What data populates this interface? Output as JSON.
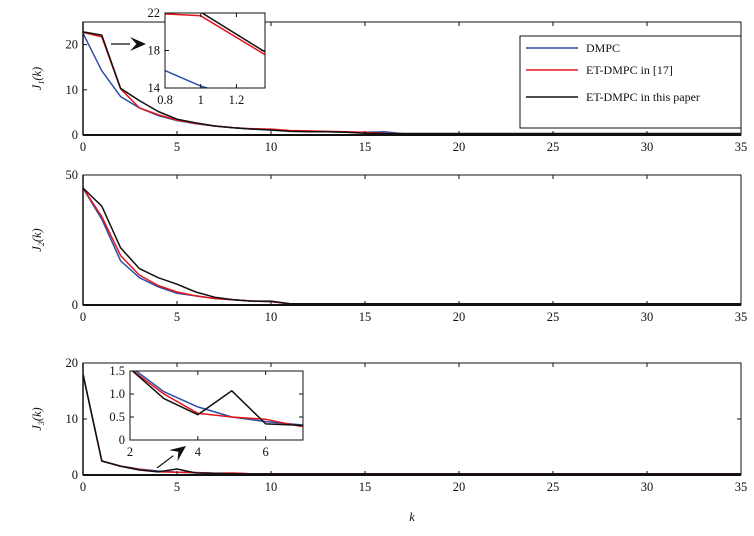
{
  "chart_data": [
    {
      "type": "line",
      "title": "",
      "xlabel": "",
      "ylabel": "J_1(k)",
      "ylabel_main": "J",
      "ylabel_sub": "1",
      "ylabel_arg": "(k)",
      "xlim": [
        0,
        35
      ],
      "ylim": [
        0,
        25
      ],
      "xticks": [
        0,
        5,
        10,
        15,
        20,
        25,
        30,
        35
      ],
      "yticks": [
        0,
        10,
        20
      ],
      "grid": false,
      "legend": {
        "placement": "top-right",
        "entries": [
          "DMPC",
          "ET-DMPC in [17]",
          "ET-DMPC in this paper"
        ]
      },
      "x": [
        0,
        1,
        2,
        3,
        4,
        5,
        6,
        7,
        8,
        9,
        10,
        11,
        12,
        13,
        14,
        15,
        16,
        17,
        18,
        19,
        20,
        21,
        22,
        23,
        24,
        25,
        26,
        27,
        28,
        29,
        30,
        31,
        32,
        33,
        34,
        35
      ],
      "series": [
        {
          "name": "DMPC",
          "color": "#2b4fa8",
          "values": [
            22.5,
            14.2,
            8.5,
            6,
            4.3,
            3.2,
            2.5,
            2,
            1.6,
            1.3,
            1.1,
            0.9,
            0.8,
            0.7,
            0.6,
            0.6,
            0.7,
            0.3,
            0.3,
            0.3,
            0.3,
            0.3,
            0.3,
            0.3,
            0.3,
            0.3,
            0.3,
            0.3,
            0.3,
            0.3,
            0.3,
            0.3,
            0.3,
            0.3,
            0.3,
            0.3
          ]
        },
        {
          "name": "ET-DMPC in [17]",
          "color": "#e8141c",
          "values": [
            22.7,
            21.7,
            10.2,
            6,
            4.5,
            3.3,
            2.6,
            2,
            1.6,
            1.4,
            1.3,
            1.0,
            0.9,
            0.8,
            0.7,
            0.6,
            0.4,
            0.3,
            0.3,
            0.3,
            0.3,
            0.3,
            0.3,
            0.3,
            0.3,
            0.3,
            0.3,
            0.3,
            0.3,
            0.3,
            0.3,
            0.3,
            0.3,
            0.3,
            0.3,
            0.3
          ]
        },
        {
          "name": "ET-DMPC in this paper",
          "color": "#111111",
          "values": [
            22.8,
            22.1,
            10.3,
            7.6,
            5.2,
            3.5,
            2.7,
            2.0,
            1.6,
            1.3,
            1.1,
            0.8,
            0.7,
            0.7,
            0.6,
            0.4,
            0.3,
            0.3,
            0.3,
            0.3,
            0.3,
            0.3,
            0.3,
            0.3,
            0.3,
            0.3,
            0.3,
            0.3,
            0.3,
            0.3,
            0.3,
            0.3,
            0.3,
            0.3,
            0.3,
            0.3
          ]
        }
      ],
      "inset": {
        "xlim": [
          0.8,
          1.36
        ],
        "ylim": [
          14,
          22
        ],
        "xticks": [
          0.8,
          1,
          1.2
        ],
        "xtick_labels": [
          "0.8",
          "1",
          "1.2"
        ],
        "yticks": [
          14,
          18,
          22
        ],
        "ytick_labels": [
          "14",
          "18",
          "22"
        ]
      }
    },
    {
      "type": "line",
      "ylabel": "J_2(k)",
      "ylabel_main": "J",
      "ylabel_sub": "2",
      "ylabel_arg": "(k)",
      "xlim": [
        0,
        35
      ],
      "ylim": [
        0,
        50
      ],
      "xticks": [
        0,
        5,
        10,
        15,
        20,
        25,
        30,
        35
      ],
      "yticks": [
        0,
        50
      ],
      "grid": false,
      "x": [
        0,
        1,
        2,
        3,
        4,
        5,
        6,
        7,
        8,
        9,
        10,
        11,
        12,
        13,
        14,
        15,
        16,
        17,
        18,
        19,
        20,
        21,
        22,
        23,
        24,
        25,
        26,
        27,
        28,
        29,
        30,
        31,
        32,
        33,
        34,
        35
      ],
      "series": [
        {
          "name": "DMPC",
          "color": "#2b4fa8",
          "values": [
            45,
            33,
            17,
            10.5,
            7,
            4.5,
            3.5,
            2.5,
            2,
            1.5,
            1.3,
            0.5,
            0.5,
            0.5,
            0.5,
            0.5,
            0.5,
            0.5,
            0.5,
            0.5,
            0.5,
            0.5,
            0.5,
            0.5,
            0.5,
            0.5,
            0.5,
            0.5,
            0.5,
            0.5,
            0.5,
            0.5,
            0.5,
            0.5,
            0.5,
            0.5
          ]
        },
        {
          "name": "ET-DMPC in [17]",
          "color": "#e8141c",
          "values": [
            45,
            34,
            19,
            11.5,
            7.5,
            5,
            3.5,
            2.5,
            2,
            1.5,
            1.3,
            0.5,
            0.5,
            0.5,
            0.5,
            0.5,
            0.5,
            0.5,
            0.5,
            0.5,
            0.5,
            0.5,
            0.5,
            0.5,
            0.5,
            0.5,
            0.5,
            0.5,
            0.5,
            0.5,
            0.5,
            0.5,
            0.5,
            0.5,
            0.5,
            0.5
          ]
        },
        {
          "name": "ET-DMPC in this paper",
          "color": "#111111",
          "values": [
            45,
            38,
            22,
            14,
            10.5,
            8,
            5,
            3,
            2,
            1.5,
            1.5,
            0.5,
            0.5,
            0.5,
            0.5,
            0.5,
            0.5,
            0.5,
            0.5,
            0.5,
            0.5,
            0.5,
            0.5,
            0.5,
            0.5,
            0.5,
            0.5,
            0.5,
            0.5,
            0.5,
            0.5,
            0.5,
            0.5,
            0.5,
            0.5,
            0.5
          ]
        }
      ]
    },
    {
      "type": "line",
      "xlabel": "k",
      "ylabel": "J_3(k)",
      "ylabel_main": "J",
      "ylabel_sub": "3",
      "ylabel_arg": "(k)",
      "xlim": [
        0,
        35
      ],
      "ylim": [
        0,
        20
      ],
      "xticks": [
        0,
        5,
        10,
        15,
        20,
        25,
        30,
        35
      ],
      "yticks": [
        0,
        10,
        20
      ],
      "grid": false,
      "x": [
        0,
        1,
        2,
        3,
        4,
        5,
        6,
        7,
        8,
        9,
        10,
        11,
        12,
        13,
        14,
        15,
        16,
        17,
        18,
        19,
        20,
        21,
        22,
        23,
        24,
        25,
        26,
        27,
        28,
        29,
        30,
        31,
        32,
        33,
        34,
        35
      ],
      "series": [
        {
          "name": "DMPC",
          "color": "#2b4fa8",
          "values": [
            18,
            2.5,
            1.6,
            1.05,
            0.72,
            0.5,
            0.4,
            0.33,
            0.3,
            0.2,
            0.2,
            0.2,
            0.2,
            0.2,
            0.2,
            0.2,
            0.2,
            0.2,
            0.2,
            0.2,
            0.2,
            0.2,
            0.2,
            0.2,
            0.2,
            0.2,
            0.2,
            0.2,
            0.2,
            0.2,
            0.2,
            0.2,
            0.2,
            0.2,
            0.2,
            0.2
          ]
        },
        {
          "name": "ET-DMPC in [17]",
          "color": "#e8141c",
          "values": [
            18,
            2.5,
            1.55,
            1.0,
            0.58,
            0.5,
            0.45,
            0.3,
            0.35,
            0.2,
            0.2,
            0.2,
            0.2,
            0.2,
            0.2,
            0.2,
            0.2,
            0.2,
            0.2,
            0.2,
            0.2,
            0.2,
            0.2,
            0.2,
            0.2,
            0.2,
            0.2,
            0.2,
            0.2,
            0.2,
            0.2,
            0.2,
            0.2,
            0.2,
            0.2,
            0.2
          ]
        },
        {
          "name": "ET-DMPC in this paper",
          "color": "#111111",
          "values": [
            18,
            2.5,
            1.55,
            0.9,
            0.55,
            1.07,
            0.35,
            0.32,
            0.2,
            0.2,
            0.2,
            0.2,
            0.2,
            0.2,
            0.2,
            0.2,
            0.2,
            0.2,
            0.2,
            0.2,
            0.2,
            0.2,
            0.2,
            0.2,
            0.2,
            0.2,
            0.2,
            0.2,
            0.2,
            0.2,
            0.2,
            0.2,
            0.2,
            0.2,
            0.2,
            0.2
          ]
        }
      ],
      "inset": {
        "xlim": [
          2,
          7.1
        ],
        "ylim": [
          0,
          1.5
        ],
        "xticks": [
          2,
          4,
          6
        ],
        "xtick_labels": [
          "2",
          "4",
          "6"
        ],
        "yticks": [
          0,
          0.5,
          1.0,
          1.5
        ],
        "ytick_labels": [
          "0",
          "0.5",
          "1.0",
          "1.5"
        ]
      }
    }
  ]
}
